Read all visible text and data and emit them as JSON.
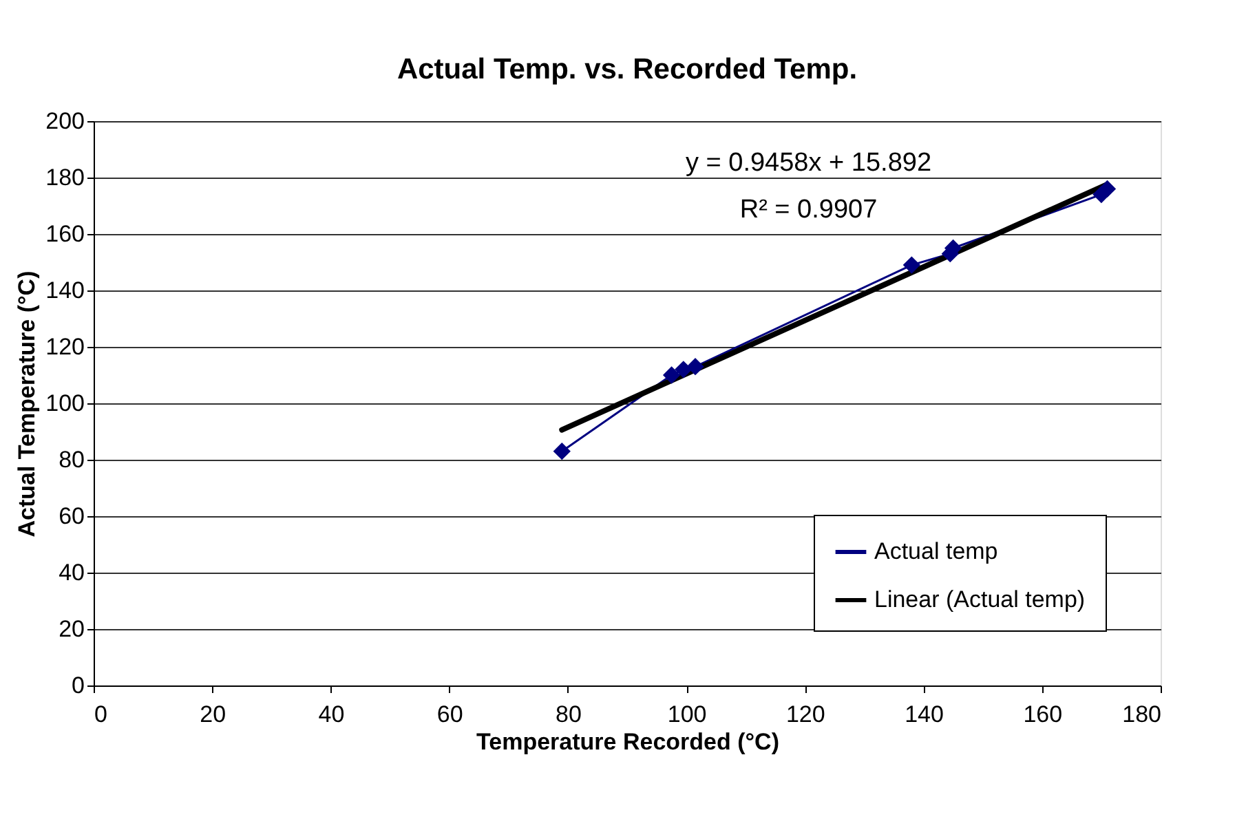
{
  "chart_data": {
    "type": "line",
    "title": "Actual Temp. vs. Recorded Temp.",
    "xlabel": "Temperature Recorded (°C)",
    "ylabel": "Actual Temperature (°C)",
    "xlim": [
      0,
      180
    ],
    "xticks": [
      0,
      20,
      40,
      60,
      80,
      100,
      120,
      140,
      160,
      180
    ],
    "ylim": [
      0,
      200
    ],
    "yticks": [
      0,
      20,
      40,
      60,
      80,
      100,
      120,
      140,
      160,
      180,
      200
    ],
    "grid": "y",
    "legend": "bottom right",
    "series": [
      {
        "name": "Actual temp",
        "color": "#000080",
        "marker": "diamond",
        "x": [
          79,
          97.5,
          99.5,
          101.5,
          138,
          144.5,
          145,
          170,
          171
        ],
        "values": [
          83,
          110,
          112,
          113,
          149,
          153,
          155,
          174,
          176
        ]
      },
      {
        "name": "Linear (Actual temp)",
        "color": "#000000",
        "marker": "none",
        "x": [
          79,
          171
        ],
        "values": [
          90.6,
          177.6
        ]
      }
    ],
    "annotations": [
      "y = 0.9458x + 15.892",
      "R² = 0.9907"
    ]
  }
}
